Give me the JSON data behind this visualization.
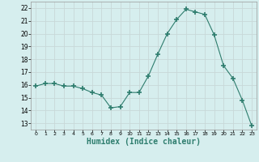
{
  "x": [
    0,
    1,
    2,
    3,
    4,
    5,
    6,
    7,
    8,
    9,
    10,
    11,
    12,
    13,
    14,
    15,
    16,
    17,
    18,
    19,
    20,
    21,
    22,
    23
  ],
  "y": [
    15.9,
    16.1,
    16.1,
    15.9,
    15.9,
    15.7,
    15.4,
    15.2,
    14.2,
    14.3,
    15.4,
    15.4,
    16.7,
    18.4,
    20.0,
    21.1,
    21.9,
    21.7,
    21.5,
    19.9,
    17.5,
    16.5,
    14.8,
    12.8
  ],
  "line_color": "#2e7d6e",
  "marker": "+",
  "marker_size": 4,
  "bg_color": "#d6eeee",
  "grid_color": "#c8d8d8",
  "xlabel": "Humidex (Indice chaleur)",
  "xlabel_fontsize": 7,
  "ylim": [
    12.5,
    22.5
  ],
  "xlim": [
    -0.5,
    23.5
  ],
  "yticks": [
    13,
    14,
    15,
    16,
    17,
    18,
    19,
    20,
    21,
    22
  ],
  "xticks": [
    0,
    1,
    2,
    3,
    4,
    5,
    6,
    7,
    8,
    9,
    10,
    11,
    12,
    13,
    14,
    15,
    16,
    17,
    18,
    19,
    20,
    21,
    22,
    23
  ]
}
